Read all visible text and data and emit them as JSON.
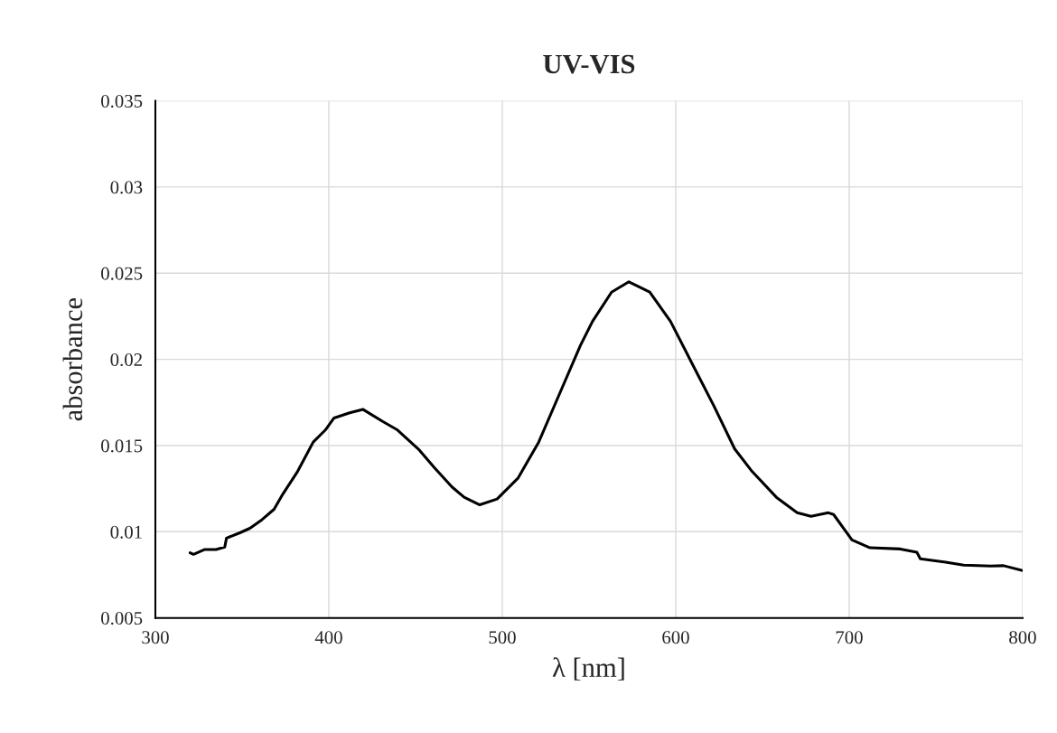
{
  "chart_data": {
    "type": "line",
    "title": "UV-VIS",
    "xlabel": "λ [nm]",
    "ylabel": "absorbance",
    "xlim": [
      300,
      800
    ],
    "xticks": [
      300,
      400,
      500,
      600,
      700,
      800
    ],
    "ylim": [
      0.005,
      0.035
    ],
    "yticks": [
      0.005,
      0.01,
      0.015,
      0.02,
      0.025,
      0.03,
      0.035
    ],
    "grid": true,
    "marker": "none",
    "line_style": "solid",
    "series": [
      {
        "color": "#000000",
        "x": [
          320,
          322,
          328.5,
          335,
          340,
          341,
          349,
          354.5,
          361.5,
          368.4,
          373.6,
          382,
          391,
          398,
          403,
          412,
          419.6,
          431,
          439.6,
          451.6,
          461,
          471,
          478,
          487,
          497,
          509,
          521,
          533,
          545,
          552,
          563,
          573,
          585,
          597,
          609.7,
          622,
          634,
          644,
          658,
          670,
          678,
          688,
          691,
          701.6,
          712,
          729.5,
          739,
          741,
          755.6,
          766,
          781.6,
          789,
          800
        ],
        "values": [
          0.00878,
          0.00869,
          0.00897,
          0.00897,
          0.00911,
          0.00963,
          0.00995,
          0.0102,
          0.0107,
          0.0113,
          0.0122,
          0.0135,
          0.0152,
          0.0159,
          0.0166,
          0.0169,
          0.0171,
          0.0164,
          0.0159,
          0.0148,
          0.0137,
          0.0126,
          0.012,
          0.01156,
          0.0119,
          0.0131,
          0.0152,
          0.018,
          0.0208,
          0.0222,
          0.0239,
          0.0245,
          0.0239,
          0.0222,
          0.0197,
          0.0173,
          0.0148,
          0.0135,
          0.012,
          0.0111,
          0.0109,
          0.0111,
          0.011,
          0.00953,
          0.00907,
          0.009,
          0.00881,
          0.00843,
          0.00823,
          0.00806,
          0.00801,
          0.00803,
          0.00775
        ]
      }
    ]
  }
}
